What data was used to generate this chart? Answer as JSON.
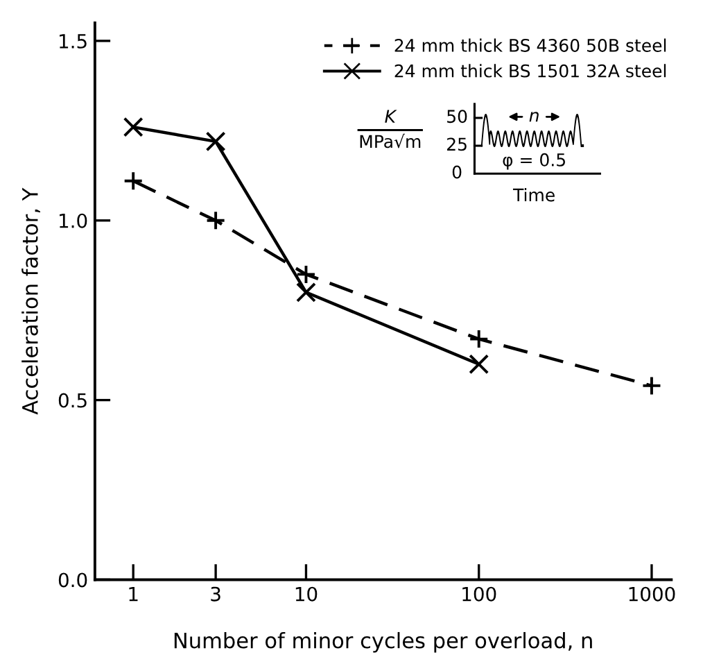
{
  "chart_data": {
    "type": "line",
    "xlabel": "Number of minor cycles per overload, n",
    "ylabel": "Acceleration factor, Y",
    "log": "x",
    "xlim": [
      0.6,
      1300
    ],
    "ylim": [
      0,
      1.55
    ],
    "xticks": [
      1,
      3,
      10,
      100,
      1000
    ],
    "yticks": [
      {
        "value": 0,
        "label": "0.0"
      },
      {
        "value": 0.5,
        "label": "0.5"
      },
      {
        "value": 1.0,
        "label": "1.0"
      },
      {
        "value": 1.5,
        "label": "1.5"
      }
    ],
    "grid": false,
    "legend": "top right",
    "series": [
      {
        "name": "24 mm thick BS 4360 50B steel",
        "color": "#000000",
        "marker": "cross",
        "line_style": "dashed",
        "x": [
          1,
          3,
          10,
          100,
          1000
        ],
        "values": [
          1.11,
          1.0,
          0.85,
          0.67,
          0.54
        ]
      },
      {
        "name": "24 mm thick BS 1501 32A steel",
        "color": "#000000",
        "marker": "x",
        "line_style": "solid",
        "x": [
          1,
          3,
          10,
          100
        ],
        "values": [
          1.26,
          1.22,
          0.8,
          0.6
        ]
      }
    ],
    "annotations": [
      "K",
      "MPa√m",
      "50",
      "25",
      "0",
      "n",
      "φ = 0.5",
      "Time"
    ]
  }
}
